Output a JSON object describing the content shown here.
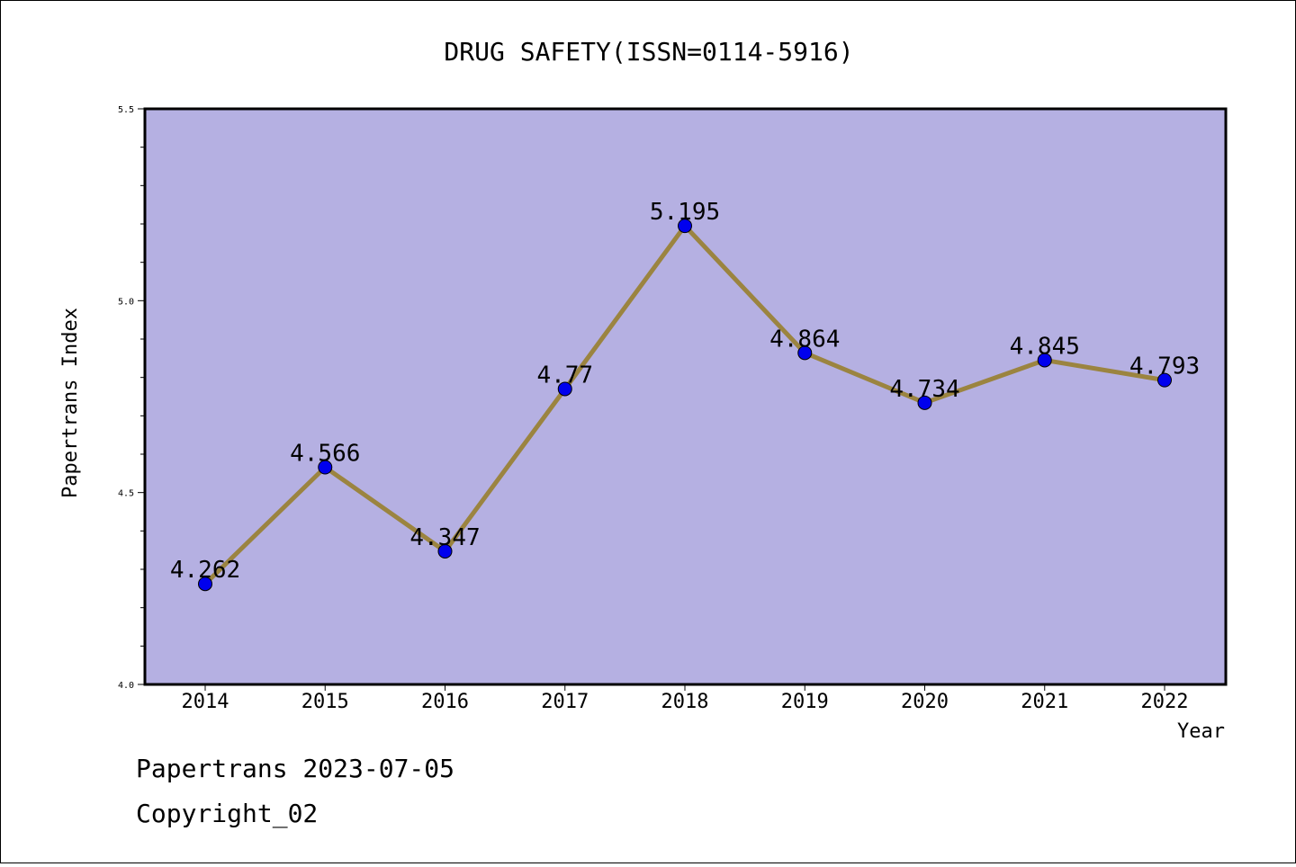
{
  "chart_data": {
    "type": "line",
    "title": "DRUG SAFETY(ISSN=0114-5916)",
    "xlabel": "Year",
    "ylabel": "Papertrans Index",
    "x": [
      "2014",
      "2015",
      "2016",
      "2017",
      "2018",
      "2019",
      "2020",
      "2021",
      "2022"
    ],
    "series": [
      {
        "values": [
          4.262,
          4.566,
          4.347,
          4.77,
          5.195,
          4.864,
          4.734,
          4.845,
          4.793
        ],
        "labels": [
          "4.262",
          "4.566",
          "4.347",
          "4.77",
          "5.195",
          "4.864",
          "4.734",
          "4.845",
          "4.793"
        ]
      }
    ],
    "ylim": [
      4.0,
      5.5
    ],
    "yticks": [
      "4.0",
      "4.5",
      "5.0",
      "5.5"
    ],
    "grid": false,
    "colors": {
      "plot_background": "#b5b0e2",
      "line": "#9b8440",
      "marker": "#0000ee"
    }
  },
  "footer": {
    "line1": "Papertrans 2023-07-05",
    "line2": "Copyright_02"
  }
}
